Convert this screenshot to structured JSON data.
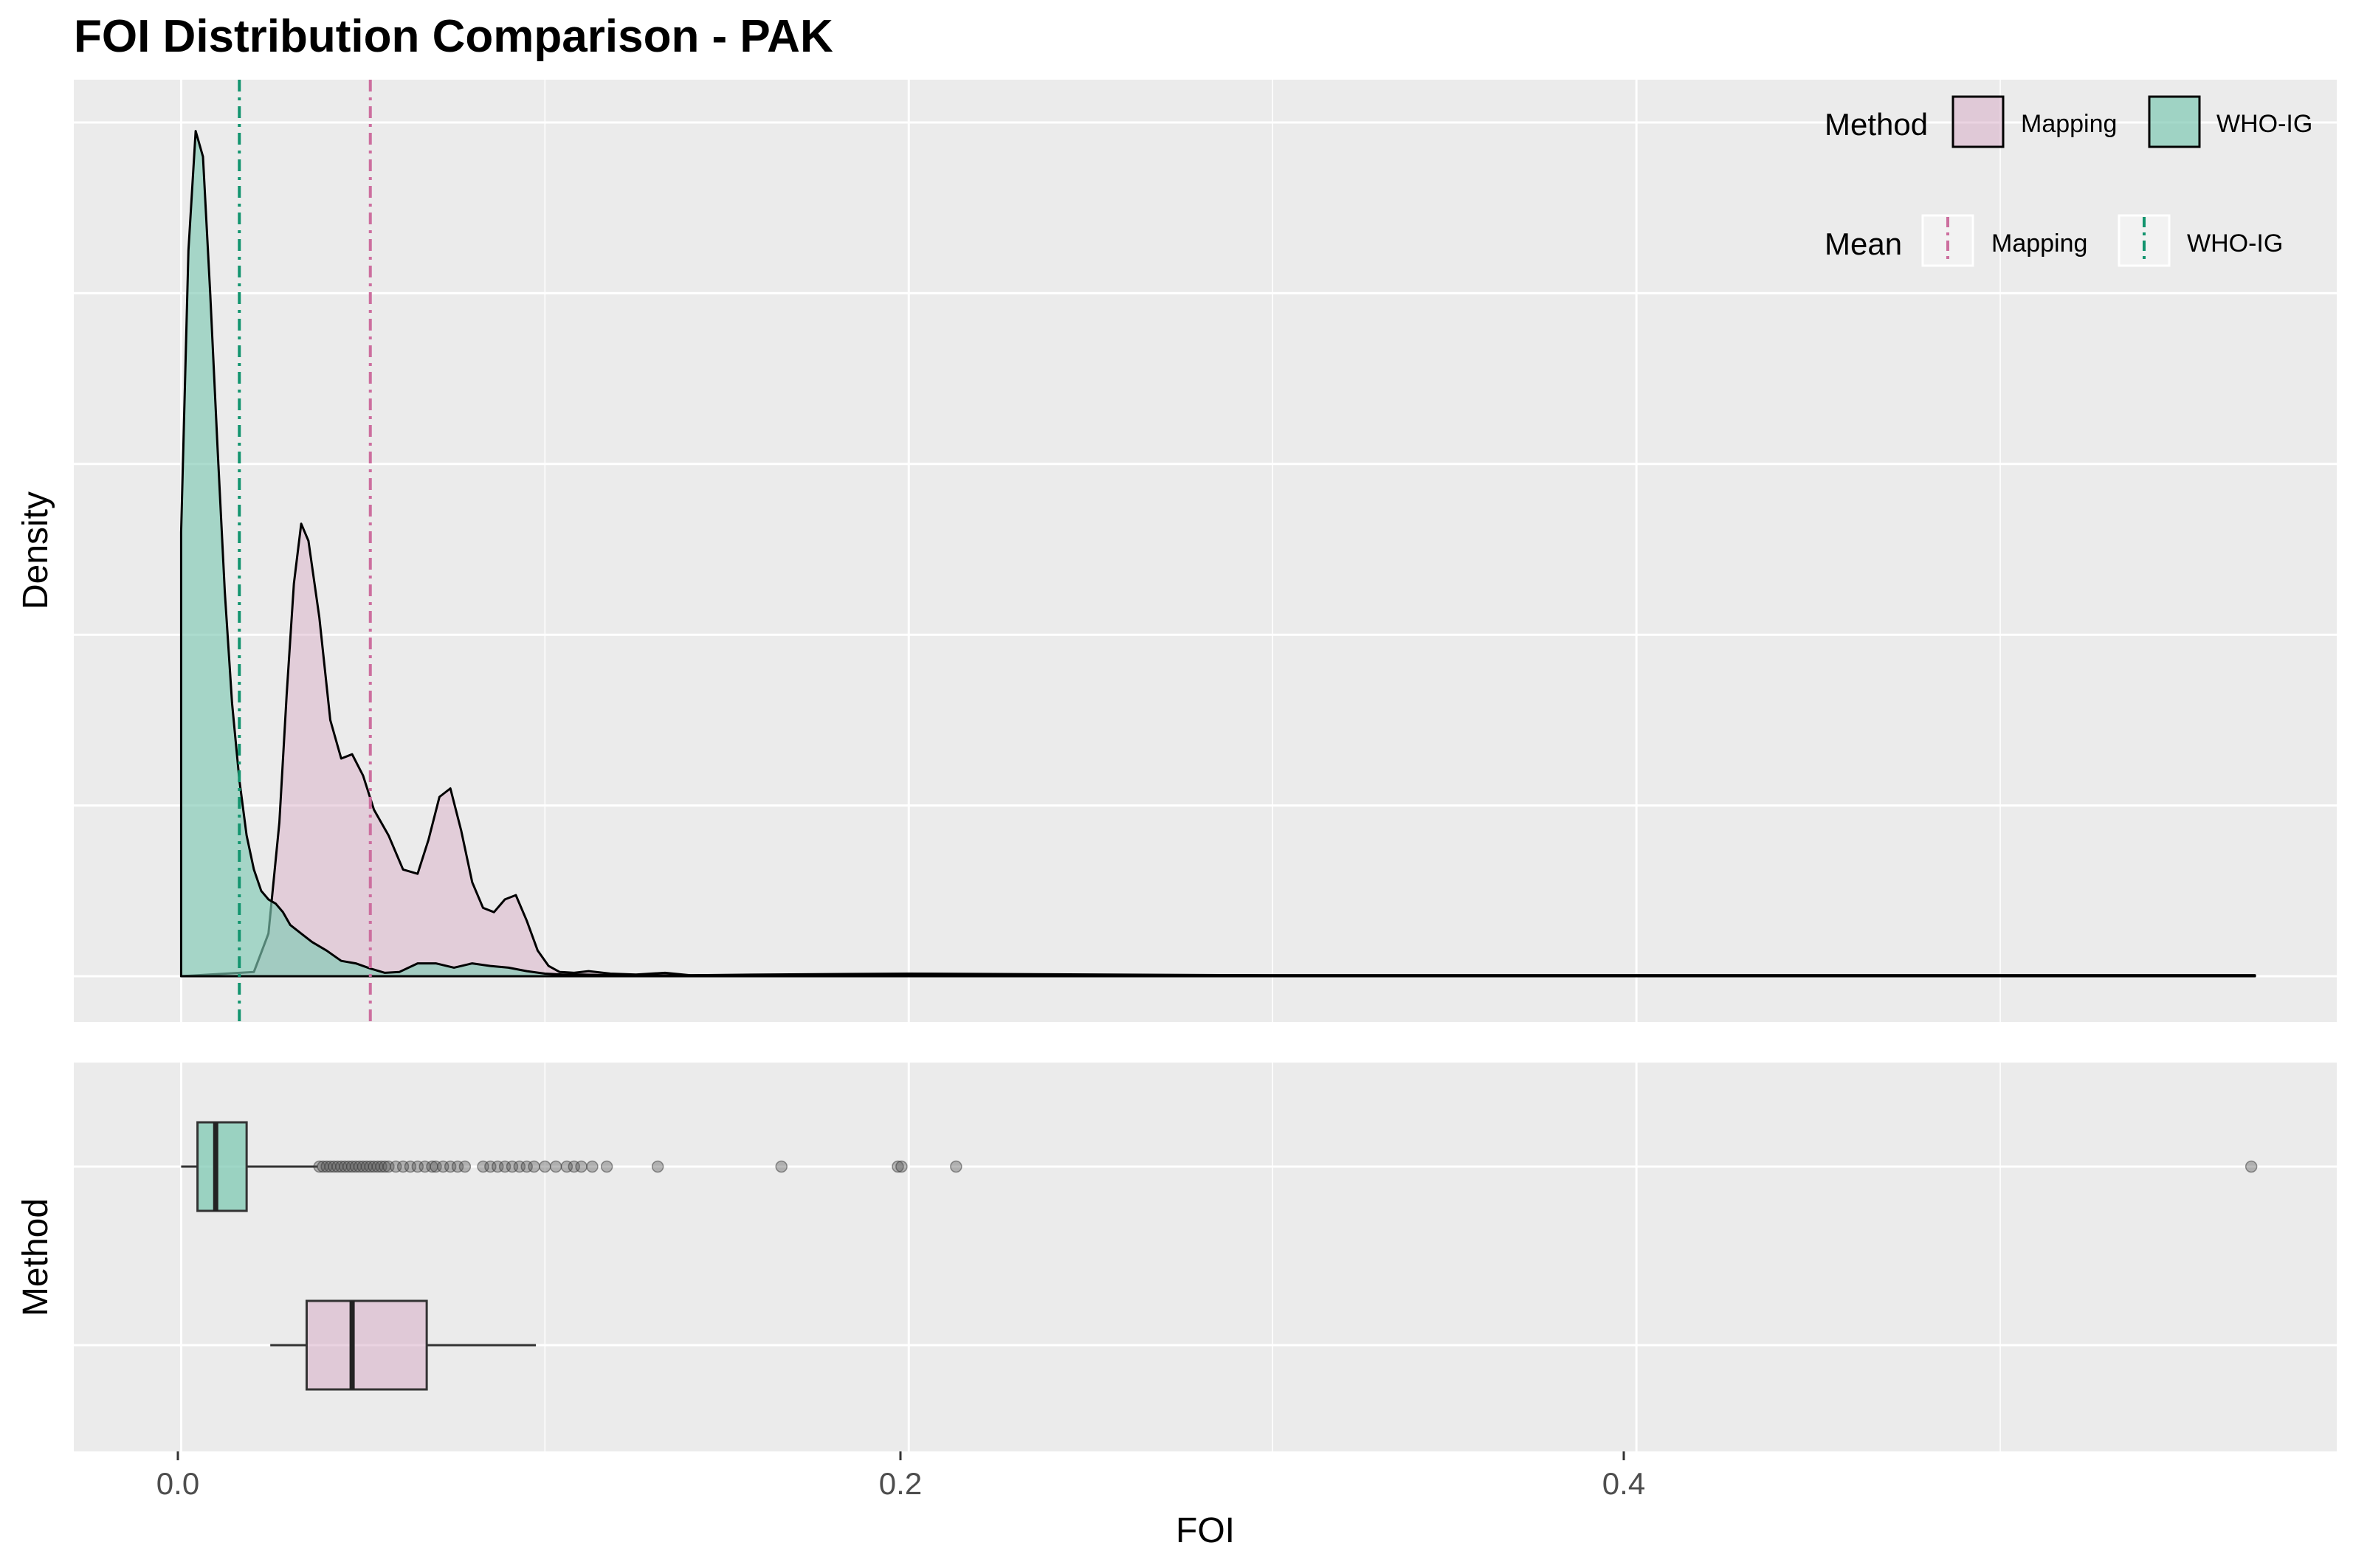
{
  "title": "FOI Distribution Comparison - PAK",
  "colors": {
    "Mapping": "#d6a8c3",
    "WHO-IG": "#7fc9b3",
    "mapping_mean_line": "#cc6e9e",
    "who_mean_line": "#12946e",
    "panel_bg": "#ebebeb",
    "grid": "#ffffff"
  },
  "legend": {
    "method_title": "Method",
    "mean_title": "Mean",
    "items": [
      "Mapping",
      "WHO-IG"
    ]
  },
  "chart_data": [
    {
      "type": "area",
      "panel": "density",
      "ylabel": "Density",
      "xlim": [
        -0.0295,
        0.5925
      ],
      "ylim": [
        0,
        1.05
      ],
      "x_breaks": [
        0.0,
        0.2,
        0.4
      ],
      "x_minor": [
        0.1,
        0.3,
        0.5
      ],
      "y_grid": [
        0,
        0.2,
        0.4,
        0.6,
        0.8,
        1.0
      ],
      "grid": true,
      "legend_position": "top-right",
      "series": [
        {
          "name": "Mapping",
          "x": [
            0.0,
            0.02,
            0.024,
            0.027,
            0.029,
            0.031,
            0.033,
            0.035,
            0.038,
            0.041,
            0.044,
            0.047,
            0.05,
            0.053,
            0.057,
            0.061,
            0.065,
            0.068,
            0.071,
            0.074,
            0.077,
            0.08,
            0.083,
            0.086,
            0.089,
            0.092,
            0.095,
            0.098,
            0.101,
            0.104,
            0.108,
            0.112,
            0.118,
            0.125,
            0.133,
            0.14,
            0.16,
            0.2,
            0.3,
            0.4,
            0.5,
            0.57
          ],
          "y": [
            0.0,
            0.005,
            0.05,
            0.18,
            0.33,
            0.46,
            0.53,
            0.51,
            0.42,
            0.3,
            0.255,
            0.26,
            0.235,
            0.195,
            0.165,
            0.125,
            0.12,
            0.16,
            0.21,
            0.22,
            0.17,
            0.11,
            0.08,
            0.075,
            0.09,
            0.095,
            0.065,
            0.03,
            0.012,
            0.005,
            0.004,
            0.006,
            0.003,
            0.002,
            0.004,
            0.001,
            0.002,
            0.003,
            0.001,
            0.001,
            0.001,
            0.001
          ]
        },
        {
          "name": "WHO-IG",
          "x": [
            0.0,
            0.002,
            0.004,
            0.006,
            0.008,
            0.01,
            0.012,
            0.014,
            0.016,
            0.018,
            0.02,
            0.022,
            0.024,
            0.026,
            0.028,
            0.03,
            0.033,
            0.036,
            0.04,
            0.044,
            0.048,
            0.052,
            0.056,
            0.06,
            0.065,
            0.07,
            0.075,
            0.08,
            0.085,
            0.09,
            0.095,
            0.1,
            0.105,
            0.11,
            0.12,
            0.13,
            0.15,
            0.2,
            0.3,
            0.4,
            0.5,
            0.57
          ],
          "y": [
            0.52,
            0.85,
            0.99,
            0.96,
            0.8,
            0.62,
            0.45,
            0.32,
            0.23,
            0.165,
            0.125,
            0.1,
            0.09,
            0.085,
            0.075,
            0.06,
            0.05,
            0.04,
            0.03,
            0.018,
            0.015,
            0.009,
            0.004,
            0.005,
            0.015,
            0.015,
            0.01,
            0.015,
            0.012,
            0.01,
            0.006,
            0.003,
            0.002,
            0.002,
            0.001,
            0.001,
            0.001,
            0.001,
            0.001,
            0.001,
            0.001,
            0.001
          ]
        }
      ],
      "means": [
        {
          "name": "Mapping",
          "x": 0.052
        },
        {
          "name": "WHO-IG",
          "x": 0.016
        }
      ]
    },
    {
      "type": "boxplot",
      "panel": "box",
      "xlabel": "FOI",
      "ylabel": "Method",
      "xlim": [
        -0.0295,
        0.5925
      ],
      "x_tick_labels": [
        "0.0",
        "0.2",
        "0.4"
      ],
      "series": [
        {
          "name": "WHO-IG",
          "whisker_low": 0.0,
          "q1": 0.0045,
          "median": 0.0095,
          "q3": 0.018,
          "whisker_high": 0.0375,
          "outliers": [
            0.038,
            0.039,
            0.04,
            0.041,
            0.042,
            0.043,
            0.044,
            0.045,
            0.046,
            0.047,
            0.048,
            0.049,
            0.05,
            0.051,
            0.052,
            0.053,
            0.054,
            0.055,
            0.056,
            0.057,
            0.059,
            0.061,
            0.063,
            0.065,
            0.067,
            0.069,
            0.07,
            0.072,
            0.074,
            0.076,
            0.078,
            0.083,
            0.085,
            0.087,
            0.089,
            0.091,
            0.093,
            0.095,
            0.097,
            0.1,
            0.103,
            0.106,
            0.108,
            0.11,
            0.113,
            0.117,
            0.131,
            0.165,
            0.197,
            0.198,
            0.213,
            0.569
          ]
        },
        {
          "name": "Mapping",
          "whisker_low": 0.0245,
          "q1": 0.0345,
          "median": 0.047,
          "q3": 0.0675,
          "whisker_high": 0.0975,
          "outliers": []
        }
      ]
    }
  ]
}
